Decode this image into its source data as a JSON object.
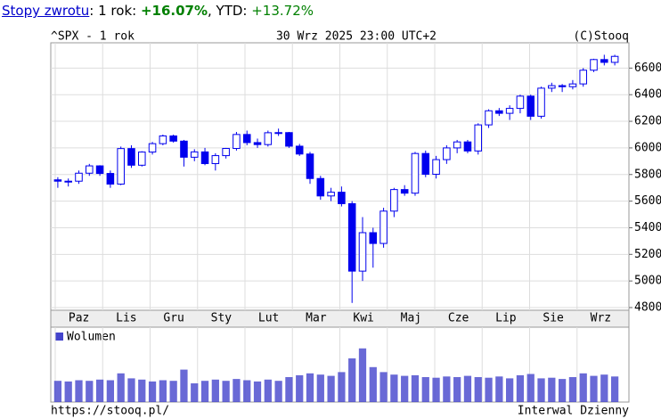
{
  "header": {
    "link": "Stopy zwrotu",
    "period": ": 1 rok: ",
    "return": "+16.07%",
    "ytd_label": ", YTD: ",
    "ytd": "+13.72%"
  },
  "chart_data": {
    "type": "candlestick",
    "title": "^SPX - 1 rok",
    "subtitle": "30 Wrz 2025 23:00 UTC+2",
    "source": "(C)Stooq",
    "footer_left": "https://stooq.pl/",
    "footer_right": "Interwal Dzienny",
    "color": "#0000ee",
    "months": [
      "Paz",
      "Lis",
      "Gru",
      "Sty",
      "Lut",
      "Mar",
      "Kwi",
      "Maj",
      "Cze",
      "Lip",
      "Sie",
      "Wrz"
    ],
    "open": [
      5760,
      5750,
      5750,
      5810,
      5865,
      5808,
      5728,
      5995,
      5870,
      5969,
      6032,
      6090,
      6051,
      5930,
      5970,
      5882,
      5942,
      5996,
      6101,
      6040,
      6025,
      6114,
      6115,
      6013,
      5954,
      5770,
      5639,
      5667,
      5581,
      5074,
      5363,
      5282,
      5525,
      5687,
      5660,
      5958,
      5802,
      5912,
      6000,
      6045,
      5977,
      6173,
      6279,
      6260,
      6297,
      6389,
      6238,
      6449,
      6468,
      6460,
      6481,
      6584,
      6664,
      6643
    ],
    "high": [
      5780,
      5770,
      5830,
      5880,
      5870,
      5830,
      6010,
      6020,
      5975,
      6045,
      6100,
      6100,
      6060,
      5990,
      6000,
      5960,
      6000,
      6120,
      6130,
      6070,
      6130,
      6145,
      6120,
      6030,
      5970,
      5790,
      5700,
      5710,
      5600,
      5480,
      5400,
      5550,
      5700,
      5720,
      5970,
      5980,
      5940,
      6020,
      6060,
      6060,
      6185,
      6290,
      6300,
      6320,
      6400,
      6400,
      6460,
      6490,
      6480,
      6510,
      6600,
      6670,
      6700,
      6700
    ],
    "low": [
      5700,
      5710,
      5730,
      5790,
      5790,
      5700,
      5720,
      5850,
      5860,
      5950,
      6020,
      6040,
      5860,
      5900,
      5870,
      5830,
      5920,
      5980,
      6020,
      6000,
      6010,
      6090,
      6000,
      5940,
      5730,
      5610,
      5600,
      5560,
      4835,
      5000,
      5100,
      5250,
      5480,
      5640,
      5640,
      5780,
      5770,
      5880,
      5960,
      5960,
      5950,
      6150,
      6240,
      6210,
      6260,
      6210,
      6220,
      6420,
      6420,
      6440,
      6460,
      6570,
      6620,
      6620
    ],
    "close": [
      5750,
      5750,
      5810,
      5865,
      5808,
      5728,
      5995,
      5870,
      5969,
      6032,
      6090,
      6051,
      5930,
      5970,
      5882,
      5942,
      5996,
      6101,
      6040,
      6025,
      6114,
      6115,
      6013,
      5954,
      5770,
      5639,
      5667,
      5581,
      5074,
      5363,
      5282,
      5525,
      5687,
      5660,
      5958,
      5802,
      5912,
      6000,
      6045,
      5977,
      6173,
      6279,
      6260,
      6297,
      6389,
      6238,
      6449,
      6468,
      6460,
      6481,
      6584,
      6664,
      6643,
      6688
    ],
    "ylim": [
      4780,
      6790
    ],
    "yticks": [
      4800,
      5000,
      5200,
      5400,
      5600,
      5800,
      6000,
      6200,
      6400,
      6600
    ],
    "grid": true,
    "volume_name": "Wolumen",
    "volume_color": "#4444cc",
    "vlim": [
      0,
      12
    ],
    "volume": [
      3.4,
      3.3,
      3.5,
      3.4,
      3.6,
      3.5,
      4.6,
      3.8,
      3.6,
      3.3,
      3.5,
      3.4,
      5.2,
      3.0,
      3.4,
      3.6,
      3.4,
      3.7,
      3.5,
      3.3,
      3.6,
      3.4,
      4.0,
      4.3,
      4.6,
      4.4,
      4.2,
      4.8,
      7.0,
      8.6,
      5.6,
      4.8,
      4.4,
      4.2,
      4.3,
      4.0,
      3.9,
      4.1,
      4.0,
      4.2,
      4.0,
      3.9,
      4.1,
      3.8,
      4.3,
      4.5,
      3.8,
      3.9,
      3.7,
      4.0,
      4.6,
      4.2,
      4.4,
      4.1
    ]
  }
}
